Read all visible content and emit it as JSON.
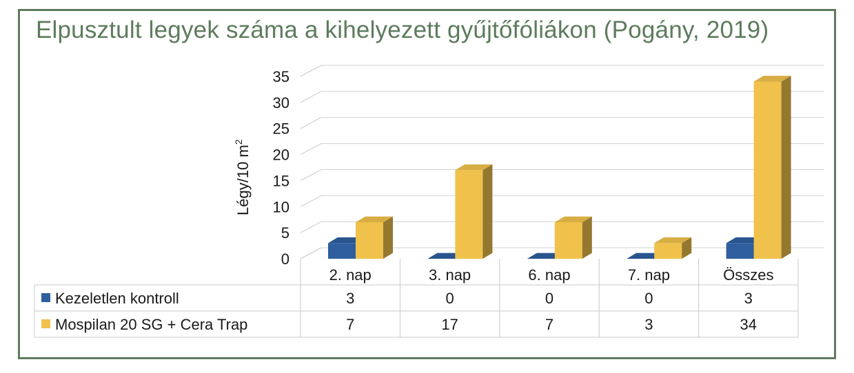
{
  "chart_data": {
    "type": "bar",
    "title": "Elpusztult legyek száma a kihelyezett gyűjtőfóliákon (Pogány, 2019)",
    "ylabel": "Légy/10 m",
    "ylabel_sup": "2",
    "ylim": [
      0,
      35
    ],
    "yticks": [
      "0",
      "5",
      "10",
      "15",
      "20",
      "25",
      "30",
      "35"
    ],
    "grid": true,
    "categories": [
      "2. nap",
      "3. nap",
      "6. nap",
      "7. nap",
      "Összes"
    ],
    "series": [
      {
        "name": "Kezeletlen kontroll",
        "values": [
          3,
          0,
          0,
          0,
          3
        ],
        "color": "#2e5e9e"
      },
      {
        "name": "Mospilan 20 SG + Cera Trap",
        "values": [
          7,
          17,
          7,
          3,
          34
        ],
        "color": "#f0c14b"
      }
    ]
  }
}
